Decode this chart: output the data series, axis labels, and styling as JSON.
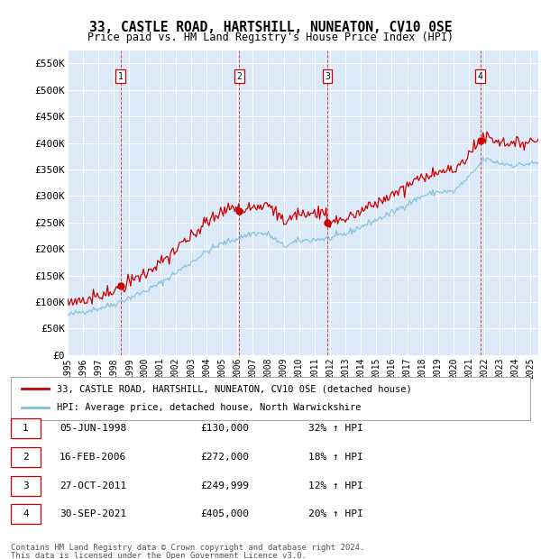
{
  "title": "33, CASTLE ROAD, HARTSHILL, NUNEATON, CV10 0SE",
  "subtitle": "Price paid vs. HM Land Registry's House Price Index (HPI)",
  "ylim": [
    0,
    575000
  ],
  "yticks": [
    0,
    50000,
    100000,
    150000,
    200000,
    250000,
    300000,
    350000,
    400000,
    450000,
    500000,
    550000
  ],
  "ytick_labels": [
    "£0",
    "£50K",
    "£100K",
    "£150K",
    "£200K",
    "£250K",
    "£300K",
    "£350K",
    "£400K",
    "£450K",
    "£500K",
    "£550K"
  ],
  "background_color": "#dce9f8",
  "grid_color": "#ffffff",
  "sale_color": "#cc0000",
  "hpi_color": "#7fbfdc",
  "legend_sale_label": "33, CASTLE ROAD, HARTSHILL, NUNEATON, CV10 0SE (detached house)",
  "legend_hpi_label": "HPI: Average price, detached house, North Warwickshire",
  "sales": [
    {
      "date_num": 1998.43,
      "price": 130000,
      "label": "1"
    },
    {
      "date_num": 2006.12,
      "price": 272000,
      "label": "2"
    },
    {
      "date_num": 2011.82,
      "price": 249999,
      "label": "3"
    },
    {
      "date_num": 2021.75,
      "price": 405000,
      "label": "4"
    }
  ],
  "sale_labels_table": [
    {
      "num": "1",
      "date": "05-JUN-1998",
      "price": "£130,000",
      "hpi": "32% ↑ HPI"
    },
    {
      "num": "2",
      "date": "16-FEB-2006",
      "price": "£272,000",
      "hpi": "18% ↑ HPI"
    },
    {
      "num": "3",
      "date": "27-OCT-2011",
      "price": "£249,999",
      "hpi": "12% ↑ HPI"
    },
    {
      "num": "4",
      "date": "30-SEP-2021",
      "price": "£405,000",
      "hpi": "20% ↑ HPI"
    }
  ],
  "footer_line1": "Contains HM Land Registry data © Crown copyright and database right 2024.",
  "footer_line2": "This data is licensed under the Open Government Licence v3.0.",
  "x_start": 1995.0,
  "x_end": 2025.5,
  "xtick_years": [
    1995,
    1996,
    1997,
    1998,
    1999,
    2000,
    2001,
    2002,
    2003,
    2004,
    2005,
    2006,
    2007,
    2008,
    2009,
    2010,
    2011,
    2012,
    2013,
    2014,
    2015,
    2016,
    2017,
    2018,
    2019,
    2020,
    2021,
    2022,
    2023,
    2024,
    2025
  ],
  "hpi_anchors_x": [
    1995.0,
    1996.0,
    1997.0,
    1998.0,
    1999.0,
    2000.0,
    2001.0,
    2002.0,
    2003.0,
    2004.0,
    2005.0,
    2006.0,
    2007.0,
    2008.0,
    2009.0,
    2010.0,
    2011.0,
    2012.0,
    2013.0,
    2014.0,
    2015.0,
    2016.0,
    2017.0,
    2018.0,
    2019.0,
    2020.0,
    2021.0,
    2022.0,
    2023.0,
    2024.0,
    2025.3
  ],
  "hpi_anchors_y": [
    75000,
    82000,
    88000,
    96000,
    108000,
    120000,
    135000,
    155000,
    175000,
    195000,
    210000,
    220000,
    230000,
    228000,
    205000,
    215000,
    218000,
    220000,
    228000,
    242000,
    255000,
    268000,
    285000,
    300000,
    308000,
    308000,
    335000,
    370000,
    362000,
    358000,
    362000
  ]
}
